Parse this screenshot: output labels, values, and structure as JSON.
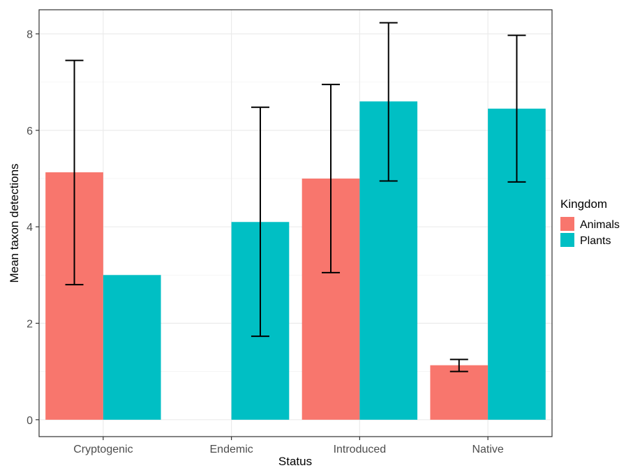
{
  "chart_data": {
    "type": "bar",
    "xlabel": "Status",
    "ylabel": "Mean taxon detections",
    "categories": [
      "Cryptogenic",
      "Endemic",
      "Introduced",
      "Native"
    ],
    "ylim": [
      -0.35,
      8.5
    ],
    "yticks": [
      0,
      2,
      4,
      6,
      8
    ],
    "grid": true,
    "legend": {
      "title": "Kingdom",
      "position": "right"
    },
    "series": [
      {
        "name": "Animals",
        "color": "#F8766D",
        "values": [
          5.13,
          null,
          5.0,
          1.13
        ],
        "error_low": [
          2.8,
          null,
          3.05,
          1.0
        ],
        "error_high": [
          7.45,
          null,
          6.95,
          1.25
        ]
      },
      {
        "name": "Plants",
        "color": "#00BFC4",
        "values": [
          3.0,
          4.1,
          6.6,
          6.45
        ],
        "error_low": [
          null,
          1.73,
          4.95,
          4.93
        ],
        "error_high": [
          null,
          6.48,
          8.23,
          7.97
        ]
      }
    ]
  }
}
